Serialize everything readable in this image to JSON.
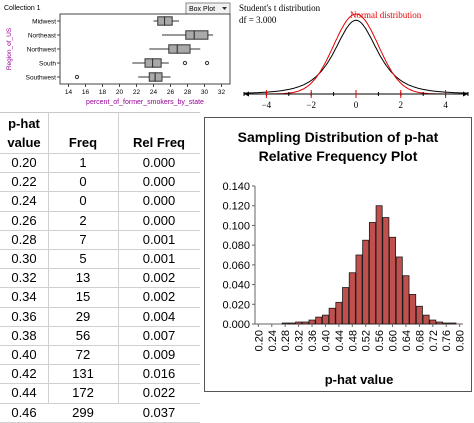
{
  "boxplot": {
    "collection_label": "Collection 1",
    "plot_type_button": "Box Plot",
    "chart_data": {
      "type": "boxplot",
      "xlabel": "percent_of_former_smokers_by_state",
      "ylabel": "Region_of_US",
      "xlim": [
        13,
        33
      ],
      "xticks": [
        14,
        16,
        18,
        20,
        22,
        24,
        26,
        28,
        30,
        32
      ],
      "categories": [
        "Midwest",
        "Northeast",
        "Northwest",
        "South",
        "Southwest"
      ],
      "boxes": [
        {
          "category": "Midwest",
          "min": 24,
          "q1": 24.5,
          "median": 25.3,
          "q3": 26.2,
          "max": 27,
          "outliers": []
        },
        {
          "category": "Northeast",
          "min": 25,
          "q1": 27.8,
          "median": 28.8,
          "q3": 30.4,
          "max": 31,
          "outliers": []
        },
        {
          "category": "Northwest",
          "min": 23.5,
          "q1": 25.8,
          "median": 26.8,
          "q3": 28.3,
          "max": 29.5,
          "outliers": []
        },
        {
          "category": "South",
          "min": 21.5,
          "q1": 23,
          "median": 23.9,
          "q3": 24.9,
          "max": 25.8,
          "outliers": [
            27.7,
            30.3
          ]
        },
        {
          "category": "Southwest",
          "min": 22.2,
          "q1": 23.5,
          "median": 24.2,
          "q3": 25,
          "max": 26,
          "outliers": [
            15
          ]
        }
      ]
    }
  },
  "tdist": {
    "chart_data": {
      "type": "line",
      "title": "Student's t distribution",
      "df_label": "df = 3.000",
      "annotation": "Normal distribution",
      "xlim": [
        -5,
        5
      ],
      "xticks": [
        -4,
        -2,
        0,
        2,
        4
      ],
      "series": [
        {
          "name": "Student's t distribution",
          "df": 3,
          "color": "#000000"
        },
        {
          "name": "Normal distribution",
          "color": "#e60000"
        }
      ]
    }
  },
  "table": {
    "headers": [
      [
        "p-hat",
        "value"
      ],
      [
        "Freq"
      ],
      [
        "Rel Freq"
      ]
    ],
    "rows": [
      [
        "0.20",
        "1",
        "0.000"
      ],
      [
        "0.22",
        "0",
        "0.000"
      ],
      [
        "0.24",
        "0",
        "0.000"
      ],
      [
        "0.26",
        "2",
        "0.000"
      ],
      [
        "0.28",
        "7",
        "0.001"
      ],
      [
        "0.30",
        "5",
        "0.001"
      ],
      [
        "0.32",
        "13",
        "0.002"
      ],
      [
        "0.34",
        "15",
        "0.002"
      ],
      [
        "0.36",
        "29",
        "0.004"
      ],
      [
        "0.38",
        "56",
        "0.007"
      ],
      [
        "0.40",
        "72",
        "0.009"
      ],
      [
        "0.42",
        "131",
        "0.016"
      ],
      [
        "0.44",
        "172",
        "0.022"
      ],
      [
        "0.46",
        "299",
        "0.037"
      ]
    ]
  },
  "histogram": {
    "title": [
      "Sampling Distribution of p-hat",
      "Relative Frequency Plot"
    ],
    "chart_data": {
      "type": "bar",
      "title": "Sampling Distribution of p-hat Relative Frequency Plot",
      "xlabel": "p-hat value",
      "ylabel": "",
      "ylim": [
        0,
        0.14
      ],
      "yticks": [
        "0.000",
        "0.020",
        "0.040",
        "0.060",
        "0.080",
        "0.100",
        "0.120",
        "0.140"
      ],
      "bar_color": "#c0504d",
      "categories": [
        "0.20",
        "0.22",
        "0.24",
        "0.26",
        "0.28",
        "0.30",
        "0.32",
        "0.34",
        "0.36",
        "0.38",
        "0.40",
        "0.42",
        "0.44",
        "0.46",
        "0.48",
        "0.50",
        "0.52",
        "0.54",
        "0.56",
        "0.58",
        "0.60",
        "0.62",
        "0.64",
        "0.66",
        "0.68",
        "0.70",
        "0.72",
        "0.74",
        "0.76",
        "0.78",
        "0.80"
      ],
      "values": [
        0,
        0,
        0,
        0,
        0.001,
        0.001,
        0.002,
        0.002,
        0.004,
        0.007,
        0.009,
        0.016,
        0.022,
        0.037,
        0.052,
        0.07,
        0.085,
        0.103,
        0.12,
        0.108,
        0.088,
        0.068,
        0.049,
        0.03,
        0.018,
        0.009,
        0.004,
        0.002,
        0.001,
        0.001,
        0
      ]
    }
  }
}
